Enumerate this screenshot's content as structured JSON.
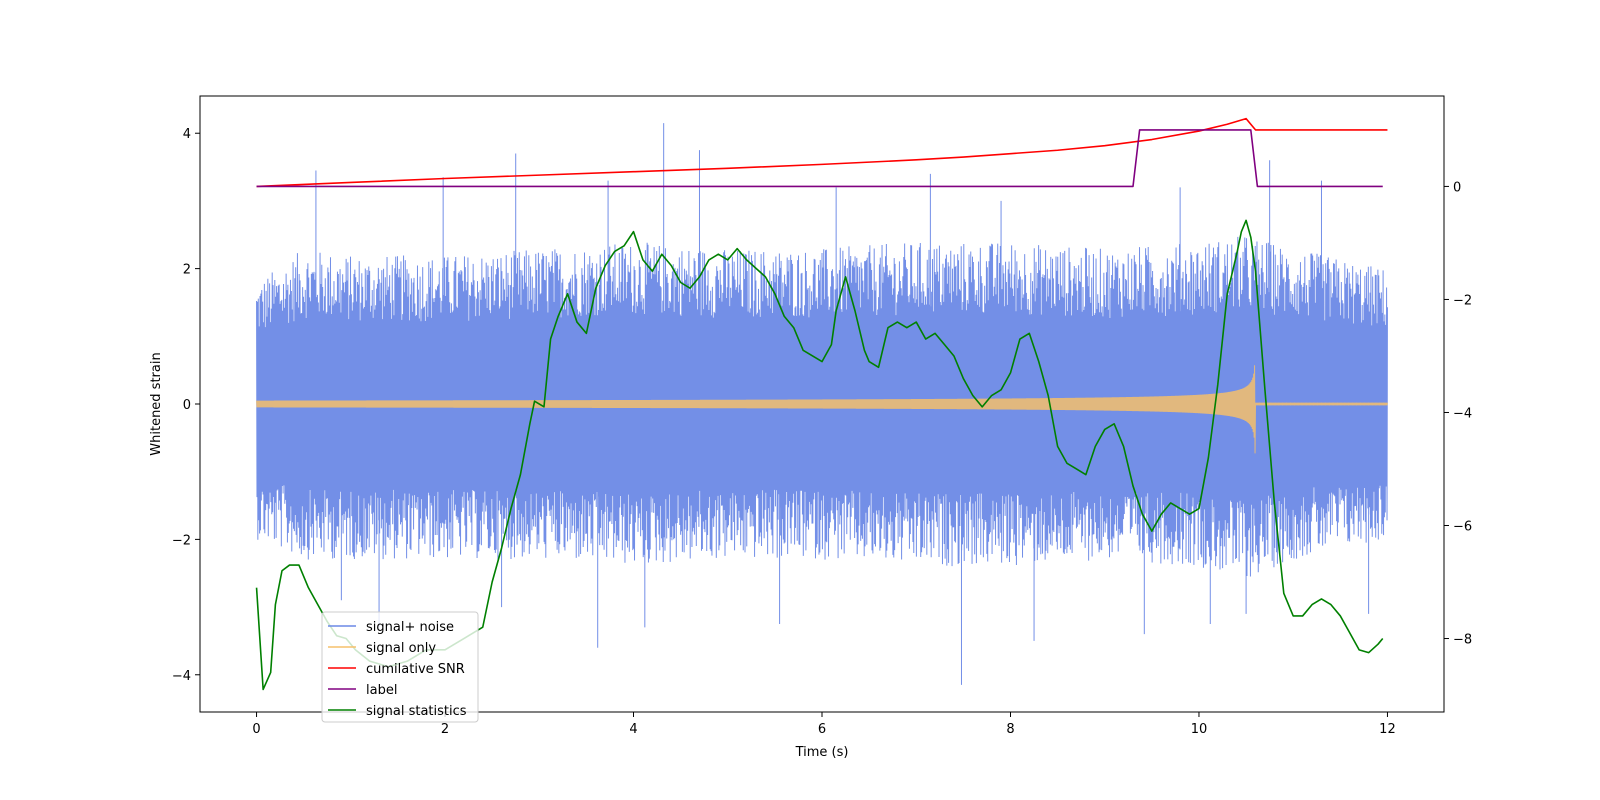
{
  "chart_data": {
    "type": "line",
    "title": "",
    "xlabel": "Time (s)",
    "ylabel": "Whitened strain",
    "y2label": "",
    "xlim": [
      -0.6,
      12.6
    ],
    "ylim": [
      -4.55,
      4.55
    ],
    "y2lim": [
      -9.3,
      1.6
    ],
    "xticks": [
      0,
      2,
      4,
      6,
      8,
      10,
      12
    ],
    "yticks": [
      -4,
      -2,
      0,
      2,
      4
    ],
    "y2ticks": [
      -8,
      -6,
      -4,
      -2,
      0
    ],
    "legend_position": "lower-left",
    "colors": {
      "noise": "#6c89e6",
      "signal": "#f5c06b",
      "snr": "#ff0000",
      "label": "#800080",
      "stats": "#008000"
    },
    "series": [
      {
        "name": "signal+ noise",
        "axis": "left",
        "style": "noise-band",
        "x_range": [
          0,
          12
        ],
        "envelope_upper": [
          [
            0,
            1.8
          ],
          [
            0.5,
            2.3
          ],
          [
            1,
            2.2
          ],
          [
            2,
            2.2
          ],
          [
            3,
            2.3
          ],
          [
            4,
            2.4
          ],
          [
            5,
            2.3
          ],
          [
            6,
            2.3
          ],
          [
            7,
            2.4
          ],
          [
            8,
            2.4
          ],
          [
            9,
            2.3
          ],
          [
            10,
            2.4
          ],
          [
            10.5,
            2.5
          ],
          [
            11,
            2.3
          ],
          [
            12,
            2.0
          ]
        ],
        "envelope_lower": [
          [
            0,
            -2.0
          ],
          [
            0.5,
            -2.3
          ],
          [
            1,
            -2.3
          ],
          [
            2,
            -2.3
          ],
          [
            3,
            -2.3
          ],
          [
            4,
            -2.4
          ],
          [
            5,
            -2.3
          ],
          [
            6,
            -2.3
          ],
          [
            7,
            -2.4
          ],
          [
            8,
            -2.4
          ],
          [
            9,
            -2.3
          ],
          [
            10,
            -2.4
          ],
          [
            10.5,
            -2.6
          ],
          [
            11,
            -2.3
          ],
          [
            12,
            -2.0
          ]
        ],
        "spikes": [
          [
            0.63,
            3.45
          ],
          [
            1.98,
            3.35
          ],
          [
            2.75,
            3.7
          ],
          [
            3.73,
            3.3
          ],
          [
            4.32,
            4.15
          ],
          [
            4.7,
            3.75
          ],
          [
            6.15,
            3.2
          ],
          [
            7.15,
            3.4
          ],
          [
            7.9,
            3.0
          ],
          [
            9.8,
            3.2
          ],
          [
            10.75,
            3.6
          ],
          [
            11.3,
            3.3
          ],
          [
            0.9,
            -2.9
          ],
          [
            1.3,
            -3.3
          ],
          [
            2.6,
            -3.0
          ],
          [
            3.62,
            -3.6
          ],
          [
            4.12,
            -3.3
          ],
          [
            5.55,
            -3.25
          ],
          [
            7.48,
            -4.15
          ],
          [
            8.25,
            -3.5
          ],
          [
            9.42,
            -3.4
          ],
          [
            10.12,
            -3.25
          ],
          [
            10.5,
            -3.1
          ],
          [
            11.8,
            -3.1
          ]
        ]
      },
      {
        "name": "signal only",
        "axis": "left",
        "style": "chirp",
        "x_range": [
          0,
          12
        ],
        "merger_time": 10.6,
        "amplitude_start": 0.05,
        "amplitude_merger": 1.12
      },
      {
        "name": "cumilative SNR",
        "axis": "right",
        "x": [
          0,
          1,
          2,
          3,
          4,
          5,
          6,
          6.5,
          7,
          7.5,
          8,
          8.5,
          9,
          9.5,
          10,
          10.3,
          10.5,
          10.6,
          12
        ],
        "y": [
          0,
          0.07,
          0.14,
          0.2,
          0.26,
          0.32,
          0.39,
          0.43,
          0.47,
          0.52,
          0.58,
          0.64,
          0.72,
          0.83,
          0.98,
          1.1,
          1.2,
          1.0,
          1.0
        ]
      },
      {
        "name": "label",
        "axis": "right",
        "x": [
          0,
          9.3,
          9.37,
          10.55,
          10.62,
          11.95
        ],
        "y": [
          0,
          0,
          1.0,
          1.0,
          0,
          0
        ]
      },
      {
        "name": "signal statistics",
        "axis": "right",
        "x": [
          0,
          0.07,
          0.15,
          0.2,
          0.27,
          0.35,
          0.45,
          0.55,
          0.65,
          0.75,
          0.85,
          0.95,
          1.05,
          1.2,
          1.4,
          1.6,
          1.8,
          2.0,
          2.2,
          2.4,
          2.5,
          2.6,
          2.7,
          2.8,
          2.9,
          2.95,
          3.05,
          3.12,
          3.2,
          3.3,
          3.4,
          3.5,
          3.6,
          3.7,
          3.8,
          3.9,
          4.0,
          4.1,
          4.2,
          4.3,
          4.4,
          4.5,
          4.6,
          4.7,
          4.8,
          4.9,
          5.0,
          5.1,
          5.2,
          5.3,
          5.4,
          5.5,
          5.6,
          5.7,
          5.8,
          5.9,
          6.0,
          6.1,
          6.15,
          6.25,
          6.35,
          6.45,
          6.5,
          6.6,
          6.7,
          6.8,
          6.9,
          7.0,
          7.1,
          7.2,
          7.3,
          7.4,
          7.5,
          7.6,
          7.7,
          7.8,
          7.9,
          8.0,
          8.1,
          8.2,
          8.3,
          8.4,
          8.5,
          8.6,
          8.7,
          8.8,
          8.9,
          9.0,
          9.1,
          9.2,
          9.3,
          9.4,
          9.5,
          9.6,
          9.7,
          9.8,
          9.9,
          10.0,
          10.1,
          10.2,
          10.3,
          10.4,
          10.45,
          10.5,
          10.55,
          10.6,
          10.7,
          10.8,
          10.9,
          11.0,
          11.1,
          11.2,
          11.3,
          11.4,
          11.5,
          11.6,
          11.7,
          11.8,
          11.9,
          11.95
        ],
        "y": [
          -7.1,
          -8.9,
          -8.6,
          -7.4,
          -6.8,
          -6.7,
          -6.7,
          -7.1,
          -7.4,
          -7.7,
          -7.95,
          -8.0,
          -8.2,
          -8.4,
          -8.5,
          -8.4,
          -8.2,
          -8.2,
          -8.0,
          -7.8,
          -7.0,
          -6.4,
          -5.7,
          -5.1,
          -4.2,
          -3.8,
          -3.9,
          -2.7,
          -2.3,
          -1.9,
          -2.4,
          -2.6,
          -1.8,
          -1.4,
          -1.15,
          -1.05,
          -0.8,
          -1.3,
          -1.5,
          -1.2,
          -1.4,
          -1.7,
          -1.8,
          -1.6,
          -1.3,
          -1.2,
          -1.3,
          -1.1,
          -1.3,
          -1.45,
          -1.6,
          -1.9,
          -2.3,
          -2.5,
          -2.9,
          -3.0,
          -3.1,
          -2.8,
          -2.2,
          -1.6,
          -2.2,
          -2.9,
          -3.1,
          -3.2,
          -2.5,
          -2.4,
          -2.5,
          -2.4,
          -2.7,
          -2.6,
          -2.8,
          -3.0,
          -3.4,
          -3.7,
          -3.9,
          -3.7,
          -3.6,
          -3.3,
          -2.7,
          -2.6,
          -3.1,
          -3.7,
          -4.6,
          -4.9,
          -5.0,
          -5.1,
          -4.6,
          -4.3,
          -4.2,
          -4.6,
          -5.3,
          -5.8,
          -6.1,
          -5.8,
          -5.6,
          -5.7,
          -5.8,
          -5.7,
          -4.8,
          -3.5,
          -1.9,
          -1.2,
          -0.8,
          -0.6,
          -0.9,
          -1.5,
          -3.6,
          -5.6,
          -7.2,
          -7.6,
          -7.6,
          -7.4,
          -7.3,
          -7.4,
          -7.6,
          -7.9,
          -8.2,
          -8.25,
          -8.1,
          -8.0
        ]
      }
    ]
  }
}
